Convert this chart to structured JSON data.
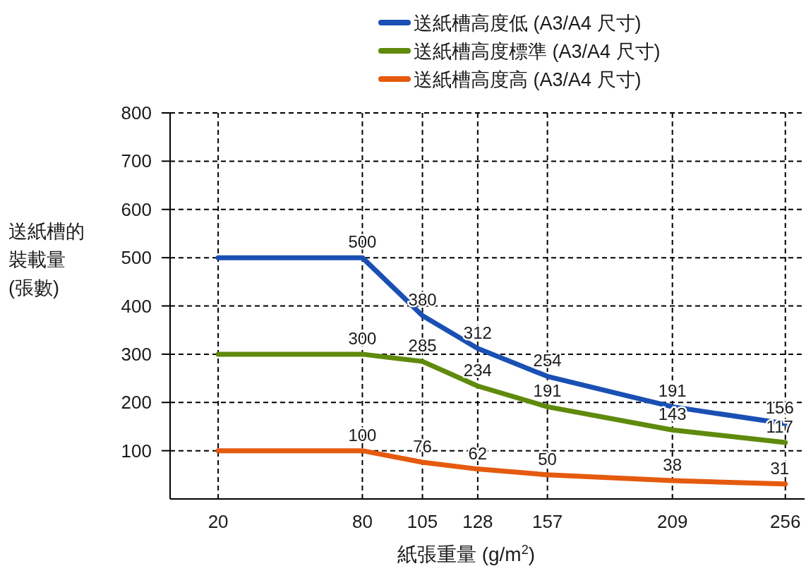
{
  "chart_data": {
    "type": "line",
    "xlabel": "紙張重量 (g/m$^{2}$)",
    "ylabel": "送紙槽的裝載量(張數)",
    "x": [
      20,
      80,
      105,
      128,
      157,
      209,
      256
    ],
    "xlim": [
      0,
      264
    ],
    "xticks": [
      20,
      80,
      105,
      128,
      157,
      209,
      256
    ],
    "ylim": [
      0,
      800
    ],
    "yticks": [
      100,
      200,
      300,
      400,
      500,
      600,
      700,
      800
    ],
    "grid": true,
    "legend": "top right",
    "marker": "none",
    "line_style": "solid",
    "data_labels": true,
    "series": [
      {
        "name": "送紙槽高度低 (A3/A4 尺寸)",
        "color": "#1a50b4",
        "values": [
          500,
          500,
          380,
          312,
          254,
          191,
          156
        ],
        "value_labels": [
          null,
          "500",
          "380",
          "312",
          "254",
          "191",
          "156"
        ]
      },
      {
        "name": "送紙槽高度標準 (A3/A4 尺寸)",
        "color": "#5f8a0c",
        "values": [
          300,
          300,
          285,
          234,
          191,
          143,
          117
        ],
        "value_labels": [
          null,
          "300",
          "285",
          "234",
          "191",
          "143",
          "117"
        ]
      },
      {
        "name": "送紙槽高度高 (A3/A4 尺寸)",
        "color": "#e55a0e",
        "values": [
          100,
          100,
          76,
          62,
          50,
          38,
          31
        ],
        "value_labels": [
          null,
          "100",
          "76",
          "62",
          "50",
          "38",
          "31"
        ]
      }
    ]
  }
}
